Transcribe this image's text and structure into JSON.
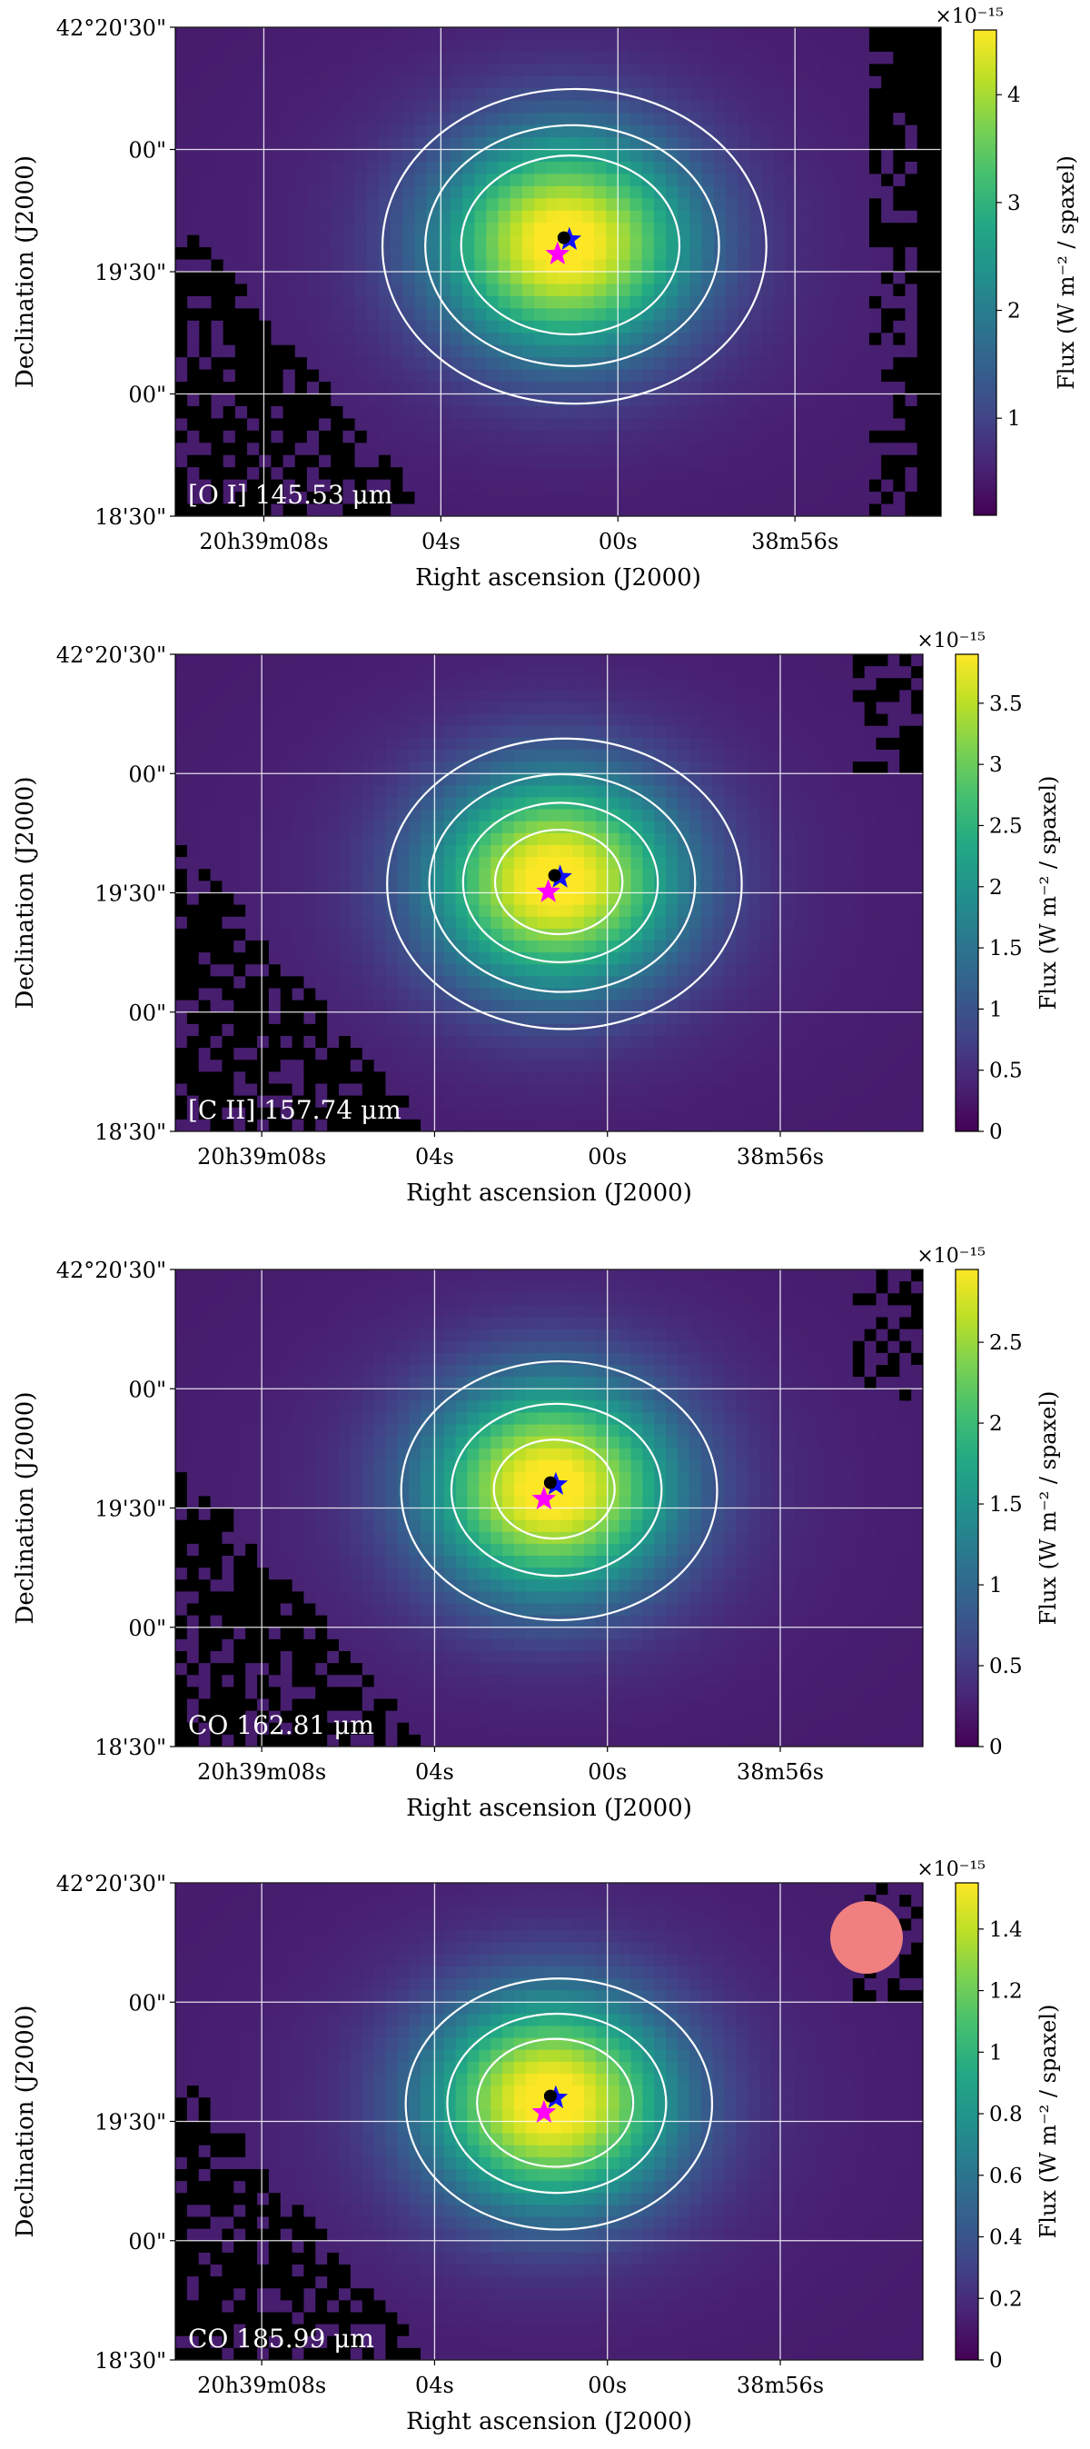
{
  "chart_data": [
    {
      "type": "heatmap",
      "line_label": "[O I] 145.53 μm",
      "colorbar_label": "Flux (W m⁻² / spaxel)",
      "colorbar_exponent": "×10⁻¹⁵",
      "colorbar_ticks": [
        1,
        2,
        3,
        4
      ],
      "colorbar_range": [
        0.1,
        4.6
      ],
      "peak": 4.6,
      "peak_position": {
        "ra": "20h39m01.2s",
        "dec": "42°19'37\""
      },
      "contour_levels": [
        0.9,
        1.6,
        2.5
      ],
      "xlabel": "Right ascension (J2000)",
      "ylabel": "Declination (J2000)",
      "xticks": [
        "20h39m08s",
        "04s",
        "00s",
        "38m56s"
      ],
      "yticks": [
        "42°20'30\"",
        "00\"",
        "19'30\"",
        "00\"",
        "18'30\""
      ],
      "grid": true,
      "colormap": "viridis",
      "markers": [
        {
          "symbol": "star",
          "color": "#ff00ff"
        },
        {
          "symbol": "star",
          "color": "#1010ff"
        },
        {
          "symbol": "circle",
          "color": "#000000"
        }
      ],
      "beam": false
    },
    {
      "type": "heatmap",
      "line_label": "[C II] 157.74 μm",
      "colorbar_label": "Flux (W m⁻² / spaxel)",
      "colorbar_exponent": "×10⁻¹⁵",
      "colorbar_ticks": [
        0.0,
        0.5,
        1.0,
        1.5,
        2.0,
        2.5,
        3.0,
        3.5
      ],
      "colorbar_range": [
        0.0,
        3.9
      ],
      "peak": 3.9,
      "peak_position": {
        "ra": "20h39m01.2s",
        "dec": "42°19'33\""
      },
      "contour_levels": [
        0.8,
        1.5,
        2.3,
        3.1
      ],
      "xlabel": "Right ascension (J2000)",
      "ylabel": "Declination (J2000)",
      "xticks": [
        "20h39m08s",
        "04s",
        "00s",
        "38m56s"
      ],
      "yticks": [
        "42°20'30\"",
        "00\"",
        "19'30\"",
        "00\"",
        "18'30\""
      ],
      "grid": true,
      "colormap": "viridis",
      "markers": [
        {
          "symbol": "star",
          "color": "#ff00ff"
        },
        {
          "symbol": "star",
          "color": "#1010ff"
        },
        {
          "symbol": "circle",
          "color": "#000000"
        }
      ],
      "beam": false
    },
    {
      "type": "heatmap",
      "line_label": "CO 162.81 μm",
      "colorbar_label": "Flux (W m⁻² / spaxel)",
      "colorbar_exponent": "×10⁻¹⁵",
      "colorbar_ticks": [
        0.0,
        0.5,
        1.0,
        1.5,
        2.0,
        2.5
      ],
      "colorbar_range": [
        0.0,
        2.95
      ],
      "peak": 2.95,
      "peak_position": {
        "ra": "20h39m01.3s",
        "dec": "42°19'35\""
      },
      "contour_levels": [
        0.8,
        1.6,
        2.4
      ],
      "xlabel": "Right ascension (J2000)",
      "ylabel": "Declination (J2000)",
      "xticks": [
        "20h39m08s",
        "04s",
        "00s",
        "38m56s"
      ],
      "yticks": [
        "42°20'30\"",
        "00\"",
        "19'30\"",
        "00\"",
        "18'30\""
      ],
      "grid": true,
      "colormap": "viridis",
      "markers": [
        {
          "symbol": "star",
          "color": "#ff00ff"
        },
        {
          "symbol": "star",
          "color": "#1010ff"
        },
        {
          "symbol": "circle",
          "color": "#000000"
        }
      ],
      "beam": false
    },
    {
      "type": "heatmap",
      "line_label": "CO 185.99 μm",
      "colorbar_label": "Flux (W m⁻² / spaxel)",
      "colorbar_exponent": "×10⁻¹⁵",
      "colorbar_ticks": [
        0.0,
        0.2,
        0.4,
        0.6,
        0.8,
        1.0,
        1.2,
        1.4
      ],
      "colorbar_range": [
        0.0,
        1.55
      ],
      "peak": 1.55,
      "peak_position": {
        "ra": "20h39m01.3s",
        "dec": "42°19'35\""
      },
      "contour_levels": [
        0.45,
        0.8,
        1.1
      ],
      "xlabel": "Right ascension (J2000)",
      "ylabel": "Declination (J2000)",
      "xticks": [
        "20h39m08s",
        "04s",
        "00s",
        "38m56s"
      ],
      "yticks": [
        "42°20'30\"",
        "00\"",
        "19'30\"",
        "00\"",
        "18'30\""
      ],
      "grid": true,
      "colormap": "viridis",
      "markers": [
        {
          "symbol": "star",
          "color": "#ff00ff"
        },
        {
          "symbol": "star",
          "color": "#1010ff"
        },
        {
          "symbol": "circle",
          "color": "#000000"
        }
      ],
      "beam": true,
      "beam_color": "#f08080"
    }
  ]
}
